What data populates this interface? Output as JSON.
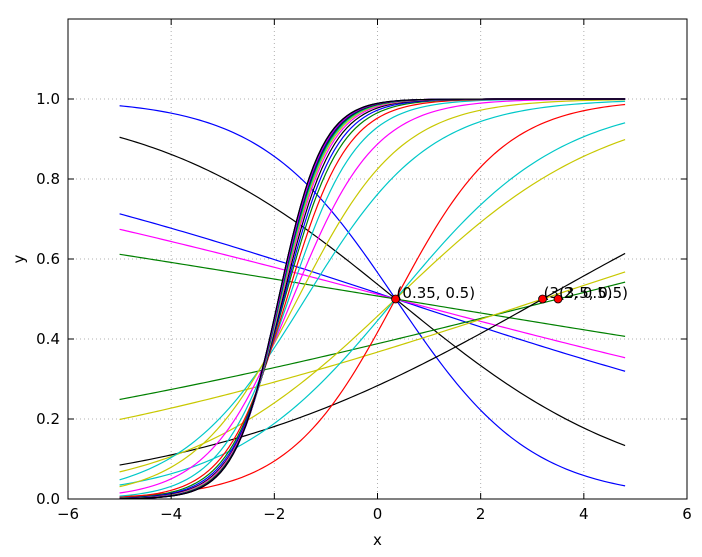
{
  "chart_data": {
    "type": "line",
    "title": "",
    "xlabel": "x",
    "ylabel": "y",
    "xlim": [
      -6,
      6
    ],
    "ylim": [
      0,
      1.2
    ],
    "grid": true,
    "grid_style": "dotted",
    "x_ticks": [
      -6,
      -4,
      -2,
      0,
      2,
      4,
      6
    ],
    "x_tick_labels": [
      "−6",
      "−4",
      "−2",
      "0",
      "2",
      "4",
      "6"
    ],
    "y_ticks": [
      0.0,
      0.2,
      0.4,
      0.6,
      0.8,
      1.0
    ],
    "y_tick_labels": [
      "0.0",
      "0.2",
      "0.4",
      "0.6",
      "0.8",
      "1.0"
    ],
    "x_range": [
      -5.0,
      4.8
    ],
    "sigmoid_curves": [
      {
        "color": "#0000ff",
        "midpoint": 0.35,
        "slope": -0.76
      },
      {
        "color": "#000000",
        "midpoint": 0.35,
        "slope": -0.42
      },
      {
        "color": "#0000ff",
        "midpoint": 0.35,
        "slope": -0.17
      },
      {
        "color": "#ff00ff",
        "midpoint": 0.35,
        "slope": -0.136
      },
      {
        "color": "#008000",
        "midpoint": 0.35,
        "slope": -0.085
      },
      {
        "color": "#008000",
        "midpoint": 3.5,
        "slope": 0.13
      },
      {
        "color": "#c8c800",
        "midpoint": 3.2,
        "slope": 0.17
      },
      {
        "color": "#000000",
        "midpoint": 3.2,
        "slope": 0.29
      },
      {
        "color": "#c8c800",
        "midpoint": 0.35,
        "slope": 0.49
      },
      {
        "color": "#00c8c8",
        "midpoint": 0.35,
        "slope": 0.62
      },
      {
        "color": "#ff0000",
        "midpoint": 0.35,
        "slope": 0.96
      },
      {
        "color": "#00c8c8",
        "midpoint": -1.4,
        "slope": 0.83
      },
      {
        "color": "#c8c800",
        "midpoint": -1.55,
        "slope": 1.0
      },
      {
        "color": "#ff00ff",
        "midpoint": -1.65,
        "slope": 1.25
      },
      {
        "color": "#00c8c8",
        "midpoint": -1.72,
        "slope": 1.5
      },
      {
        "color": "#ff0000",
        "midpoint": -1.76,
        "slope": 1.7
      },
      {
        "color": "#008000",
        "midpoint": -1.8,
        "slope": 1.85
      },
      {
        "color": "#0000ff",
        "midpoint": -1.82,
        "slope": 1.95
      },
      {
        "color": "#000000",
        "midpoint": -1.84,
        "slope": 2.05
      },
      {
        "color": "#ff00ff",
        "midpoint": -1.86,
        "slope": 2.12
      },
      {
        "color": "#c8c800",
        "midpoint": -1.87,
        "slope": 2.18
      },
      {
        "color": "#00c8c8",
        "midpoint": -1.88,
        "slope": 2.22
      },
      {
        "color": "#008000",
        "midpoint": -1.89,
        "slope": 2.25
      },
      {
        "color": "#000000",
        "midpoint": -1.9,
        "slope": 2.28
      },
      {
        "color": "#0000ff",
        "midpoint": -1.9,
        "slope": 2.3
      },
      {
        "color": "#ff0000",
        "midpoint": -1.91,
        "slope": 2.32
      },
      {
        "color": "#ff00ff",
        "midpoint": -1.91,
        "slope": 2.33
      },
      {
        "color": "#000000",
        "midpoint": -1.92,
        "slope": 2.34
      },
      {
        "color": "#0000ff",
        "midpoint": -1.92,
        "slope": 2.35
      },
      {
        "color": "#000000",
        "midpoint": -1.92,
        "slope": 2.36
      }
    ],
    "points": [
      {
        "x": 0.35,
        "y": 0.5,
        "label": "(0.35, 0.5)"
      },
      {
        "x": 3.2,
        "y": 0.5,
        "label": "(3.2, 0.5)"
      },
      {
        "x": 3.5,
        "y": 0.5,
        "label": "(3.5, 0.5)"
      }
    ],
    "point_color": "#ff0000"
  }
}
